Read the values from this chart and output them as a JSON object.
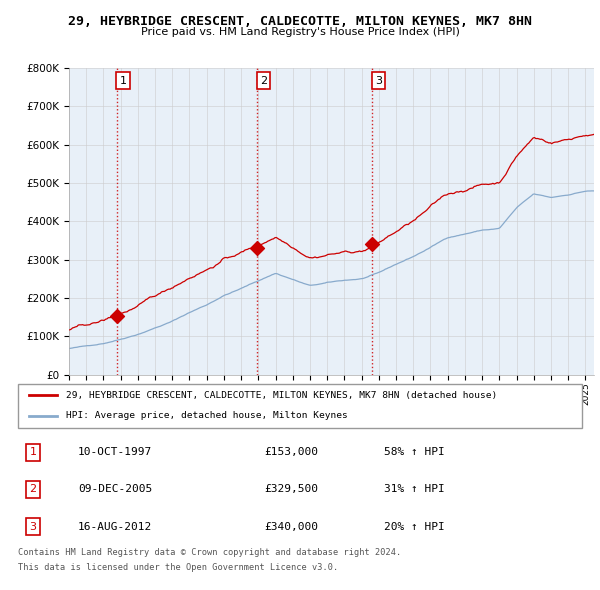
{
  "title": "29, HEYBRIDGE CRESCENT, CALDECOTTE, MILTON KEYNES, MK7 8HN",
  "subtitle": "Price paid vs. HM Land Registry's House Price Index (HPI)",
  "legend_line1": "29, HEYBRIDGE CRESCENT, CALDECOTTE, MILTON KEYNES, MK7 8HN (detached house)",
  "legend_line2": "HPI: Average price, detached house, Milton Keynes",
  "footer1": "Contains HM Land Registry data © Crown copyright and database right 2024.",
  "footer2": "This data is licensed under the Open Government Licence v3.0.",
  "sale_labels": [
    "1",
    "2",
    "3"
  ],
  "sale_dates": [
    "10-OCT-1997",
    "09-DEC-2005",
    "16-AUG-2012"
  ],
  "sale_prices": [
    153000,
    329500,
    340000
  ],
  "sale_hpi_pct": [
    "58% ↑ HPI",
    "31% ↑ HPI",
    "20% ↑ HPI"
  ],
  "sale_years": [
    1997.78,
    2005.94,
    2012.62
  ],
  "ylim": [
    0,
    800000
  ],
  "xlim_start": 1995.3,
  "xlim_end": 2025.5,
  "red_color": "#cc0000",
  "blue_color": "#88aacc",
  "chart_bg": "#e8f0f8",
  "background_color": "#ffffff",
  "grid_color": "#cccccc",
  "box_label_color": "#000000"
}
